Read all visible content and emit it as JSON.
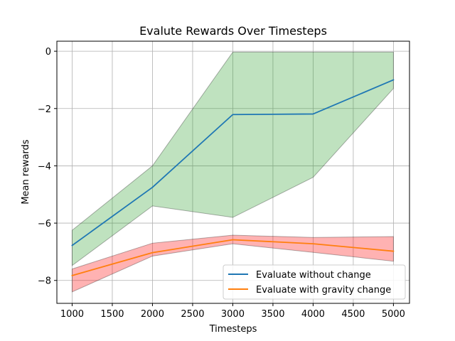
{
  "chart_data": {
    "type": "line",
    "title": "Evalute Rewards Over Timesteps",
    "xlabel": "Timesteps",
    "ylabel": "Mean rewards",
    "x": [
      1000,
      2000,
      3000,
      4000,
      5000
    ],
    "xlim": [
      810,
      5200
    ],
    "ylim": [
      -8.8,
      0.35
    ],
    "xticks": [
      1000,
      1500,
      2000,
      2500,
      3000,
      3500,
      4000,
      4500,
      5000
    ],
    "yticks": [
      0,
      -2,
      -4,
      -6,
      -8
    ],
    "ytick_labels": [
      "0",
      "−2",
      "−4",
      "−6",
      "−8"
    ],
    "grid": true,
    "legend_position": "lower-right",
    "series": [
      {
        "name": "Evaluate without change",
        "color": "#1f77b4",
        "band_color": "#2ca02c",
        "values": [
          -6.78,
          -4.75,
          -2.21,
          -2.19,
          -1.0
        ],
        "upper": [
          -6.25,
          -4.0,
          -0.03,
          -0.03,
          -0.03
        ],
        "lower": [
          -7.48,
          -5.4,
          -5.8,
          -4.4,
          -1.3
        ]
      },
      {
        "name": "Evaluate with gravity change",
        "color": "#ff7f0e",
        "band_color": "#ff0000",
        "values": [
          -7.83,
          -7.03,
          -6.58,
          -6.72,
          -6.98
        ],
        "upper": [
          -7.6,
          -6.7,
          -6.42,
          -6.5,
          -6.47
        ],
        "lower": [
          -8.4,
          -7.15,
          -6.72,
          -7.02,
          -7.33
        ]
      }
    ]
  }
}
